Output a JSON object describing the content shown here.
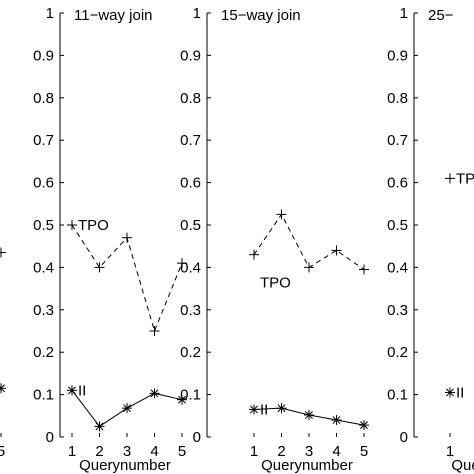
{
  "chart_data": [
    {
      "type": "line",
      "title": "",
      "xlabel": "",
      "ylabel": "",
      "ylim": [
        0,
        1
      ],
      "x": [
        5
      ],
      "series": [
        {
          "name": "",
          "style": "dashed",
          "marker": "plus",
          "values": [
            0.435
          ]
        },
        {
          "name": "",
          "style": "solid",
          "marker": "asterisk",
          "values": [
            0.115
          ]
        }
      ],
      "xticks": [
        "5"
      ],
      "yticks": []
    },
    {
      "type": "line",
      "title": "11−way join",
      "xlabel": "Querynumber",
      "ylabel": "",
      "ylim": [
        0,
        1
      ],
      "x": [
        1,
        2,
        3,
        4,
        5
      ],
      "xticks": [
        "1",
        "2",
        "3",
        "4",
        "5"
      ],
      "yticks": [
        "0",
        "0.1",
        "0.2",
        "0.3",
        "0.4",
        "0.5",
        "0.6",
        "0.7",
        "0.8",
        "0.9",
        "1"
      ],
      "series": [
        {
          "name": "TPO",
          "style": "dashed",
          "marker": "plus",
          "values": [
            0.5,
            0.4,
            0.47,
            0.25,
            0.41
          ]
        },
        {
          "name": "II",
          "style": "solid",
          "marker": "asterisk",
          "values": [
            0.11,
            0.025,
            0.068,
            0.103,
            0.088
          ]
        }
      ]
    },
    {
      "type": "line",
      "title": "15−way join",
      "xlabel": "Querynumber",
      "ylabel": "",
      "ylim": [
        0,
        1
      ],
      "x": [
        1,
        2,
        3,
        4,
        5
      ],
      "xticks": [
        "1",
        "2",
        "3",
        "4",
        "5"
      ],
      "yticks": [
        "0",
        "0.1",
        "0.2",
        "0.3",
        "0.4",
        "0.5",
        "0.6",
        "0.7",
        "0.8",
        "0.9",
        "1"
      ],
      "series": [
        {
          "name": "TPO",
          "style": "dashed",
          "marker": "plus",
          "values": [
            0.43,
            0.525,
            0.4,
            0.44,
            0.395
          ]
        },
        {
          "name": "II",
          "style": "solid",
          "marker": "asterisk",
          "values": [
            0.065,
            0.068,
            0.052,
            0.04,
            0.028
          ]
        }
      ]
    },
    {
      "type": "line",
      "title": "25−",
      "xlabel": "Quer",
      "ylabel": "",
      "ylim": [
        0,
        1
      ],
      "x": [
        1
      ],
      "xticks": [
        "1"
      ],
      "yticks": [
        "0",
        "0.1",
        "0.2",
        "0.3",
        "0.4",
        "0.5",
        "0.6",
        "0.7",
        "0.8",
        "0.9",
        "1"
      ],
      "series": [
        {
          "name": "TPO",
          "style": "dashed",
          "marker": "plus",
          "values": [
            0.61
          ]
        },
        {
          "name": "II",
          "style": "solid",
          "marker": "asterisk",
          "values": [
            0.105
          ]
        }
      ]
    }
  ]
}
